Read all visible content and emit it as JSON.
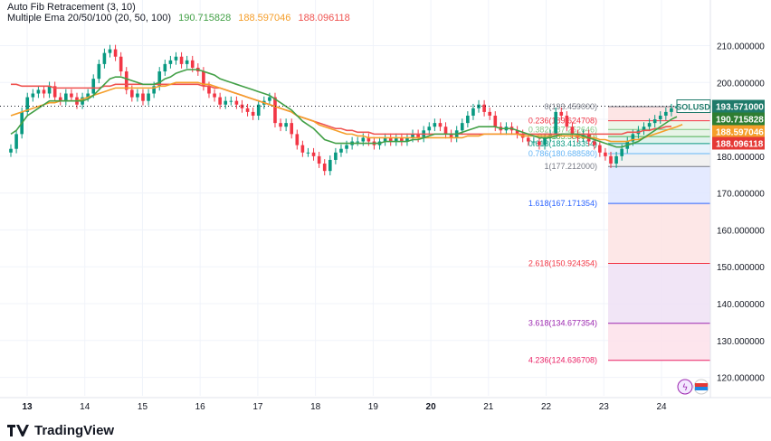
{
  "legend": {
    "fib_title": "Auto Fib Retracement (3, 10)",
    "ema_title": "Multiple Ema 20/50/100 (20, 50, 100)",
    "ema_values": [
      "190.715828",
      "188.597046",
      "188.096118"
    ]
  },
  "brand": "TradingView",
  "colors": {
    "ema20": "#43a047",
    "ema50": "#f59e2a",
    "ema100": "#ef5350",
    "up": "#089981",
    "down": "#f23645",
    "symbol_tag": "#1f7a6a"
  },
  "chart_data": {
    "type": "candlestick",
    "symbol": "SOLUSD",
    "last_price": "193.571000",
    "ema_tags": [
      "190.715828",
      "188.597046",
      "188.096118"
    ],
    "ylim": [
      115,
      216
    ],
    "y_ticks": [
      "210.000000",
      "200.000000",
      "190.000000",
      "180.000000",
      "170.000000",
      "160.000000",
      "150.000000",
      "140.000000",
      "130.000000",
      "120.000000"
    ],
    "x_ticks": [
      "13",
      "14",
      "15",
      "16",
      "17",
      "18",
      "19",
      "20",
      "21",
      "22",
      "23",
      "24"
    ],
    "fib_levels": [
      {
        "ratio": "0",
        "price": 193.459,
        "label": "0(193.459000)",
        "color": "#787b86"
      },
      {
        "ratio": "0.236",
        "price": 189.624708,
        "label": "0.236(189.624708)",
        "color": "#f23645"
      },
      {
        "ratio": "0.382",
        "price": 187.252646,
        "label": "0.382(187.252646)",
        "color": "#81c784"
      },
      {
        "ratio": "0.5",
        "price": 185.3355,
        "label": "0.5(185.335500)",
        "color": "#4caf50"
      },
      {
        "ratio": "0.618",
        "price": 183.418354,
        "label": "0.618(183.418354)",
        "color": "#089981"
      },
      {
        "ratio": "0.786",
        "price": 180.68858,
        "label": "0.786(180.688580)",
        "color": "#64b5f6"
      },
      {
        "ratio": "1",
        "price": 177.212,
        "label": "1(177.212000)",
        "color": "#787b86"
      },
      {
        "ratio": "1.618",
        "price": 167.171354,
        "label": "1.618(167.171354)",
        "color": "#2962ff"
      },
      {
        "ratio": "2.618",
        "price": 150.924354,
        "label": "2.618(150.924354)",
        "color": "#f23645"
      },
      {
        "ratio": "3.618",
        "price": 134.677354,
        "label": "3.618(134.677354)",
        "color": "#9c27b0"
      },
      {
        "ratio": "4.236",
        "price": 124.636708,
        "label": "4.236(124.636708)",
        "color": "#e91e63"
      }
    ],
    "closes": [
      182,
      186,
      192,
      196,
      197,
      198,
      197,
      199,
      196,
      195,
      197,
      196,
      194,
      196,
      197,
      201,
      205,
      208,
      209,
      207,
      203,
      198,
      196,
      197,
      195,
      197,
      199,
      203,
      205,
      206,
      207,
      205,
      206,
      204,
      203,
      199,
      197,
      196,
      194,
      195,
      195,
      194,
      193,
      192,
      191,
      194,
      195,
      196,
      189,
      188,
      189,
      186,
      183,
      181,
      181,
      180,
      178,
      176,
      179,
      181,
      182,
      183,
      184,
      184,
      185,
      184,
      183,
      184,
      185,
      184,
      185,
      184,
      185,
      186,
      185,
      187,
      188,
      189,
      188,
      186,
      185,
      187,
      189,
      191,
      193,
      194,
      192,
      191,
      188,
      187,
      188,
      187,
      186,
      185,
      184,
      184,
      183,
      185,
      186,
      192,
      191,
      188,
      186,
      185,
      186,
      184,
      183,
      181,
      180,
      178,
      180,
      182,
      184,
      186,
      187,
      188,
      189,
      190,
      191,
      192,
      193,
      193.571
    ],
    "ema20": [
      186,
      187,
      189,
      191,
      192,
      193,
      194,
      195,
      195,
      195,
      195,
      195,
      195,
      195,
      195.5,
      196.5,
      198,
      199.5,
      201,
      201.5,
      201.5,
      201,
      200.5,
      200,
      199.5,
      199.5,
      199.5,
      200,
      201,
      201.5,
      202.5,
      203,
      203.5,
      203.5,
      203.5,
      203,
      202.5,
      202,
      201,
      200.5,
      200,
      199.5,
      199,
      198.5,
      198,
      197.5,
      197,
      196.5,
      195.5,
      194.5,
      193.5,
      192.5,
      191,
      189.5,
      188.5,
      187.5,
      186,
      184.5,
      184,
      183.5,
      183.5,
      183.5,
      183.5,
      183.5,
      183.5,
      183.5,
      183.5,
      183.5,
      184,
      184,
      184,
      184,
      184,
      184.5,
      184.5,
      185,
      185.5,
      186,
      186,
      186,
      186,
      186,
      186.5,
      187,
      187.5,
      188,
      188,
      188,
      188,
      187.5,
      187.5,
      187.5,
      187,
      186.5,
      186,
      185.5,
      185,
      185,
      185,
      185.5,
      186,
      186,
      186,
      186,
      185.5,
      185,
      184.5,
      184,
      183.5,
      183,
      182.5,
      182.5,
      183,
      183.5,
      184,
      185,
      186,
      187,
      188,
      189,
      190,
      190.715828
    ],
    "ema50": [
      191,
      191.5,
      192,
      192.5,
      193,
      193.5,
      194,
      194.5,
      194.5,
      195,
      195,
      195,
      195,
      195.5,
      196,
      196.5,
      197,
      197.5,
      198,
      198.5,
      198.5,
      198.5,
      198.5,
      198.5,
      198.5,
      198.5,
      198.5,
      199,
      199,
      199.5,
      200,
      200,
      200,
      200,
      200,
      199.5,
      199.5,
      199,
      198.5,
      198,
      197.5,
      197,
      196.5,
      196,
      195.5,
      195,
      194.5,
      194,
      193.5,
      193,
      192.5,
      192,
      191,
      190.5,
      190,
      189.5,
      188.5,
      188,
      187.5,
      187,
      186.5,
      186,
      186,
      185.5,
      185.5,
      185,
      185,
      185,
      185,
      185,
      185,
      185,
      185,
      185,
      185,
      185,
      185,
      185,
      185,
      185,
      185,
      185,
      185,
      185.5,
      185.5,
      185.5,
      186,
      186,
      186,
      186,
      186,
      186,
      186,
      185.5,
      185.5,
      185.5,
      185.5,
      185.5,
      185.5,
      185.5,
      185.5,
      185.5,
      185.5,
      185.5,
      185,
      185,
      185,
      184.5,
      184.5,
      184,
      184,
      184,
      184,
      184.5,
      184.5,
      185,
      185.5,
      186,
      186.5,
      187,
      187.5,
      188,
      188.597046
    ],
    "ema100": [
      199.5,
      199.5,
      199,
      199,
      199,
      199,
      199,
      199,
      198.5,
      198.5,
      198.5,
      198.5,
      198.5,
      198.5,
      198.5,
      198.5,
      198.5,
      199,
      199,
      199.5,
      199.5,
      199.5,
      199.5,
      199.5,
      199.5,
      199.5,
      199.5,
      199.5,
      199.5,
      199.5,
      199.5,
      199.5,
      199.5,
      199.5,
      199.5,
      199,
      199,
      198.5,
      198.5,
      198,
      197.5,
      197,
      196.5,
      196,
      195.5,
      195,
      194.5,
      194,
      193.5,
      193,
      192.5,
      192,
      191,
      190.5,
      190,
      189.5,
      189,
      188.5,
      188,
      187.5,
      187.5,
      187,
      187,
      186.5,
      186.5,
      186.5,
      186,
      186,
      186,
      186,
      186,
      186,
      186,
      186,
      186,
      186,
      186,
      186,
      186,
      186,
      186,
      186,
      186,
      186,
      186,
      186,
      186,
      186,
      186,
      186,
      186,
      186,
      186,
      186,
      186,
      186,
      186,
      186,
      186,
      186,
      186,
      186,
      186,
      186,
      186,
      186,
      186,
      186,
      186,
      186,
      186,
      186,
      186.5,
      186.5,
      186.5,
      187,
      187,
      187.5,
      187.5,
      188,
      188.096118
    ]
  }
}
